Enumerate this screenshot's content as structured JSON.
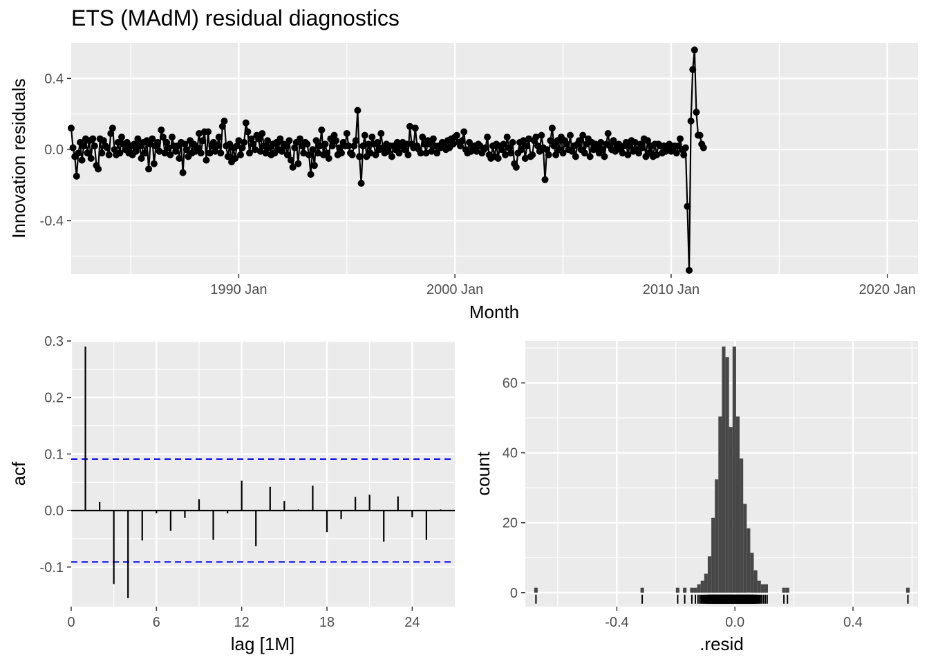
{
  "title": "ETS (MAdM) residual diagnostics",
  "chart_data": [
    {
      "type": "line",
      "name": "innovation-residuals",
      "xlabel": "Month",
      "ylabel": "Innovation residuals",
      "x_range": [
        "1982-04",
        "2021-06"
      ],
      "ylim": [
        -0.7,
        0.6
      ],
      "x_ticks": [
        "1990 Jan",
        "2000 Jan",
        "2010 Jan",
        "2020 Jan"
      ],
      "y_ticks": [
        "-0.4",
        "0.0",
        "0.4"
      ],
      "x_start": "1982-04",
      "series": [
        {
          "markers": true,
          "values": [
            0.12,
            0.01,
            -0.04,
            -0.15,
            -0.02,
            0.04,
            -0.06,
            0.02,
            0.06,
            -0.02,
            0.05,
            -0.05,
            0.06,
            0.02,
            -0.09,
            -0.11,
            0.06,
            -0.02,
            0.05,
            0.02,
            0.01,
            -0.03,
            0.09,
            0.12,
            0.0,
            -0.03,
            0.04,
            -0.02,
            0.07,
            0.03,
            0.0,
            0.04,
            -0.02,
            0.02,
            -0.03,
            0.03,
            -0.01,
            0.06,
            0.02,
            -0.05,
            0.04,
            -0.02,
            0.05,
            -0.11,
            0.03,
            0.06,
            -0.08,
            0.02,
            0.04,
            -0.01,
            0.11,
            0.07,
            -0.02,
            0.04,
            0.01,
            -0.03,
            0.07,
            0.02,
            -0.01,
            0.02,
            -0.05,
            0.04,
            -0.13,
            0.03,
            0.0,
            -0.04,
            0.05,
            -0.02,
            0.03,
            -0.01,
            0.01,
            0.09,
            -0.02,
            0.05,
            0.1,
            -0.06,
            0.1,
            -0.02,
            0.02,
            0.04,
            -0.01,
            0.02,
            0.07,
            -0.02,
            0.13,
            0.16,
            0.02,
            -0.04,
            0.03,
            -0.07,
            0.01,
            -0.05,
            0.02,
            0.05,
            -0.03,
            0.01,
            0.04,
            0.15,
            0.1,
            -0.02,
            0.06,
            0.03,
            0.0,
            0.08,
            0.06,
            -0.01,
            0.09,
            0.02,
            -0.02,
            0.05,
            0.01,
            -0.03,
            0.03,
            -0.02,
            0.04,
            0.0,
            0.06,
            -0.01,
            0.03,
            0.02,
            -0.03,
            0.05,
            -0.06,
            -0.1,
            0.01,
            0.04,
            -0.08,
            0.06,
            0.02,
            -0.02,
            0.04,
            0.03,
            -0.03,
            -0.14,
            0.0,
            -0.09,
            0.05,
            -0.02,
            0.02,
            0.11,
            -0.03,
            0.03,
            -0.02,
            -0.05,
            0.06,
            0.02,
            0.08,
            0.05,
            -0.03,
            0.01,
            -0.02,
            0.04,
            0.02,
            0.09,
            0.02,
            -0.02,
            -0.03,
            0.02,
            0.05,
            0.22,
            -0.04,
            -0.19,
            0.02,
            0.08,
            -0.04,
            0.03,
            -0.02,
            0.07,
            0.03,
            -0.03,
            0.04,
            0.0,
            0.09,
            0.01,
            -0.02,
            0.03,
            -0.01,
            0.02,
            -0.04,
            0.02,
            0.0,
            0.04,
            -0.02,
            0.02,
            0.04,
            0.0,
            0.03,
            -0.03,
            0.13,
            0.03,
            0.01,
            0.12,
            0.02,
            0.0,
            -0.02,
            0.07,
            0.03,
            -0.02,
            0.05,
            0.03,
            -0.01,
            0.06,
            0.02,
            -0.02,
            0.02,
            0.01,
            0.04,
            0.03,
            0.0,
            0.05,
            0.01,
            0.06,
            0.03,
            0.07,
            0.08,
            0.04,
            0.02,
            0.05,
            0.1,
            0.0,
            -0.02,
            0.04,
            -0.01,
            0.01,
            0.02,
            -0.01,
            0.03,
            0.02,
            -0.02,
            0.0,
            0.01,
            0.07,
            -0.03,
            -0.05,
            0.02,
            -0.04,
            0.03,
            -0.05,
            0.02,
            0.0,
            0.03,
            -0.03,
            0.07,
            0.01,
            -0.02,
            0.04,
            -0.08,
            -0.1,
            -0.02,
            0.04,
            0.0,
            0.05,
            -0.05,
            0.02,
            0.06,
            -0.04,
            -0.03,
            0.05,
            0.07,
            0.02,
            -0.01,
            0.08,
            0.01,
            -0.17,
            0.0,
            -0.03,
            0.05,
            0.12,
            0.02,
            -0.03,
            0.05,
            0.0,
            0.07,
            -0.02,
            0.05,
            0.03,
            0.0,
            0.08,
            -0.01,
            0.02,
            -0.04,
            0.03,
            0.05,
            0.0,
            0.08,
            -0.02,
            0.03,
            0.06,
            -0.04,
            0.04,
            0.0,
            0.03,
            0.01,
            -0.02,
            0.04,
            0.0,
            -0.04,
            0.03,
            0.09,
            0.02,
            0.0,
            0.05,
            -0.01,
            0.02,
            0.03,
            0.0,
            -0.02,
            0.02,
            0.04,
            -0.03,
            0.02,
            0.05,
            -0.01,
            0.04,
            0.0,
            -0.02,
            0.03,
            0.01,
            0.06,
            -0.04,
            0.05,
            -0.02,
            0.02,
            -0.04,
            0.03,
            -0.03,
            0.03,
            0.02,
            -0.02,
            0.02,
            -0.01,
            0.02,
            0.03,
            -0.01,
            0.01,
            0.02,
            -0.02,
            0.02,
            0.06,
            0.0,
            -0.03,
            0.01,
            -0.32,
            -0.68,
            0.16,
            0.45,
            0.56,
            0.21,
            0.08,
            0.08,
            0.03,
            0.01
          ]
        }
      ]
    },
    {
      "type": "bar",
      "name": "acf",
      "xlabel": "lag [1M]",
      "ylabel": "acf",
      "xlim": [
        0,
        27
      ],
      "ylim": [
        -0.17,
        0.3
      ],
      "x_ticks": [
        "0",
        "6",
        "12",
        "18",
        "24"
      ],
      "y_ticks": [
        "-0.1",
        "0.0",
        "0.1",
        "0.2",
        "0.3"
      ],
      "lags": [
        1,
        2,
        3,
        4,
        5,
        6,
        7,
        8,
        9,
        10,
        11,
        12,
        13,
        14,
        15,
        16,
        17,
        18,
        19,
        20,
        21,
        22,
        23,
        24,
        25,
        26
      ],
      "values": [
        0.29,
        0.015,
        -0.13,
        -0.155,
        -0.053,
        -0.005,
        -0.036,
        -0.013,
        0.02,
        -0.052,
        -0.005,
        0.053,
        -0.063,
        0.042,
        0.017,
        0.002,
        0.044,
        -0.038,
        -0.015,
        0.024,
        0.028,
        -0.055,
        0.025,
        -0.012,
        -0.052,
        0.002
      ],
      "confidence_bounds": [
        0.091,
        -0.091
      ],
      "bound_color": "#0000ff"
    },
    {
      "type": "bar",
      "name": "histogram",
      "xlabel": ".resid",
      "ylabel": "count",
      "xlim": [
        -0.71,
        0.62
      ],
      "ylim": [
        -4,
        72
      ],
      "x_ticks": [
        "-0.4",
        "0.0",
        "0.4"
      ],
      "y_ticks": [
        "0",
        "20",
        "40",
        "60"
      ],
      "bin_start": -0.68,
      "bin_width": 0.012,
      "counts": [
        1,
        0,
        0,
        0,
        0,
        0,
        0,
        0,
        0,
        0,
        0,
        0,
        0,
        0,
        0,
        0,
        0,
        0,
        0,
        0,
        0,
        0,
        0,
        0,
        0,
        0,
        0,
        0,
        0,
        0,
        1,
        0,
        0,
        0,
        0,
        0,
        0,
        0,
        0,
        0,
        1,
        0,
        1,
        0,
        1,
        1,
        2,
        3,
        5,
        10,
        21,
        32,
        50,
        70,
        67,
        47,
        70,
        50,
        38,
        25,
        18,
        11,
        6,
        3,
        2,
        2,
        0,
        0,
        0,
        0,
        1,
        1,
        0,
        0,
        0,
        0,
        0,
        0,
        0,
        0,
        0,
        0,
        0,
        0,
        0,
        0,
        0,
        0,
        0,
        0,
        0,
        0,
        0,
        0,
        0,
        0,
        0,
        0,
        0,
        0,
        0,
        0,
        0,
        0,
        0,
        1,
        0,
        0,
        0,
        0,
        0,
        0,
        0,
        0,
        0,
        1
      ],
      "fill_color": "#474747"
    }
  ]
}
